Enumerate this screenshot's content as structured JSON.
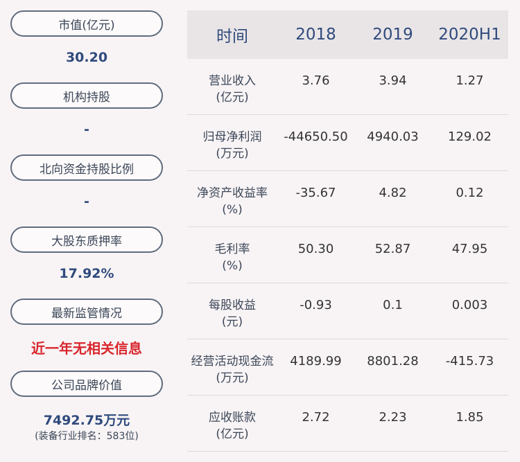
{
  "left": {
    "items": [
      {
        "label": "市值(亿元)",
        "value": "30.20"
      },
      {
        "label": "机构持股",
        "value": "-"
      },
      {
        "label": "北向资金持股比例",
        "value": "-"
      },
      {
        "label": "大股东质押率",
        "value": "17.92%"
      },
      {
        "label": "最新监管情况",
        "value": "近一年无相关信息"
      },
      {
        "label": "公司品牌价值",
        "value": "7492.75万元",
        "note": "(装备行业排名：583位)"
      }
    ]
  },
  "table": {
    "headers": [
      "时间",
      "2018",
      "2019",
      "2020H1"
    ],
    "rows": [
      {
        "label1": "营业收入",
        "label2": "(亿元)",
        "v": [
          "3.76",
          "3.94",
          "1.27"
        ]
      },
      {
        "label1": "归母净利润",
        "label2": "(万元)",
        "v": [
          "-44650.50",
          "4940.03",
          "129.02"
        ]
      },
      {
        "label1": "净资产收益率",
        "label2": "(%)",
        "v": [
          "-35.67",
          "4.82",
          "0.12"
        ]
      },
      {
        "label1": "毛利率",
        "label2": "(%)",
        "v": [
          "50.30",
          "52.87",
          "47.95"
        ]
      },
      {
        "label1": "每股收益",
        "label2": "(元)",
        "v": [
          "-0.93",
          "0.1",
          "0.003"
        ]
      },
      {
        "label1": "经营活动现金流",
        "label2": "(万元)",
        "v": [
          "4189.99",
          "8801.28",
          "-415.73"
        ]
      },
      {
        "label1": "应收账款",
        "label2": "(亿元)",
        "v": [
          "2.72",
          "2.23",
          "1.85"
        ]
      }
    ]
  },
  "colors": {
    "accent": "#2f4a7d",
    "alert": "#d8262d",
    "header_bg": "#e9e5e6"
  }
}
